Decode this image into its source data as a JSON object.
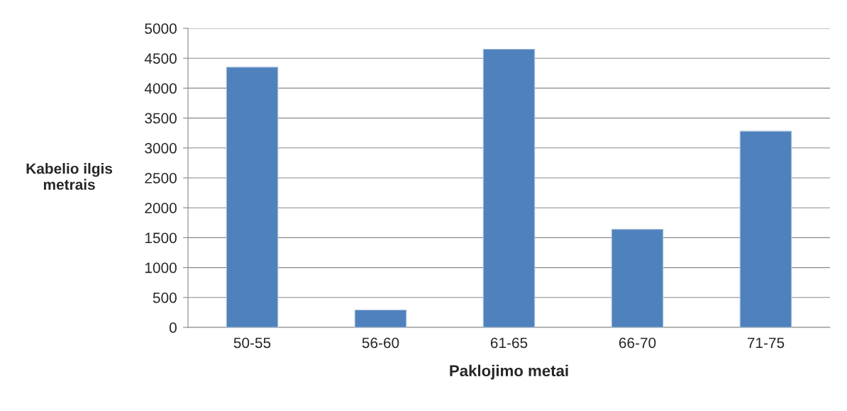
{
  "chart_data": {
    "type": "bar",
    "xlabel": "Paklojimo metai",
    "ylabel": "Kabelio ilgis\nmetrais",
    "categories": [
      "50-55",
      "56-60",
      "61-65",
      "66-70",
      "71-75"
    ],
    "values": [
      4350,
      290,
      4650,
      1640,
      3280
    ],
    "color": "#4f81bd",
    "ylim": [
      0,
      5000
    ],
    "yticks": [
      0,
      500,
      1000,
      1500,
      2000,
      2500,
      3000,
      3500,
      4000,
      4500,
      5000
    ],
    "grid": "y"
  }
}
